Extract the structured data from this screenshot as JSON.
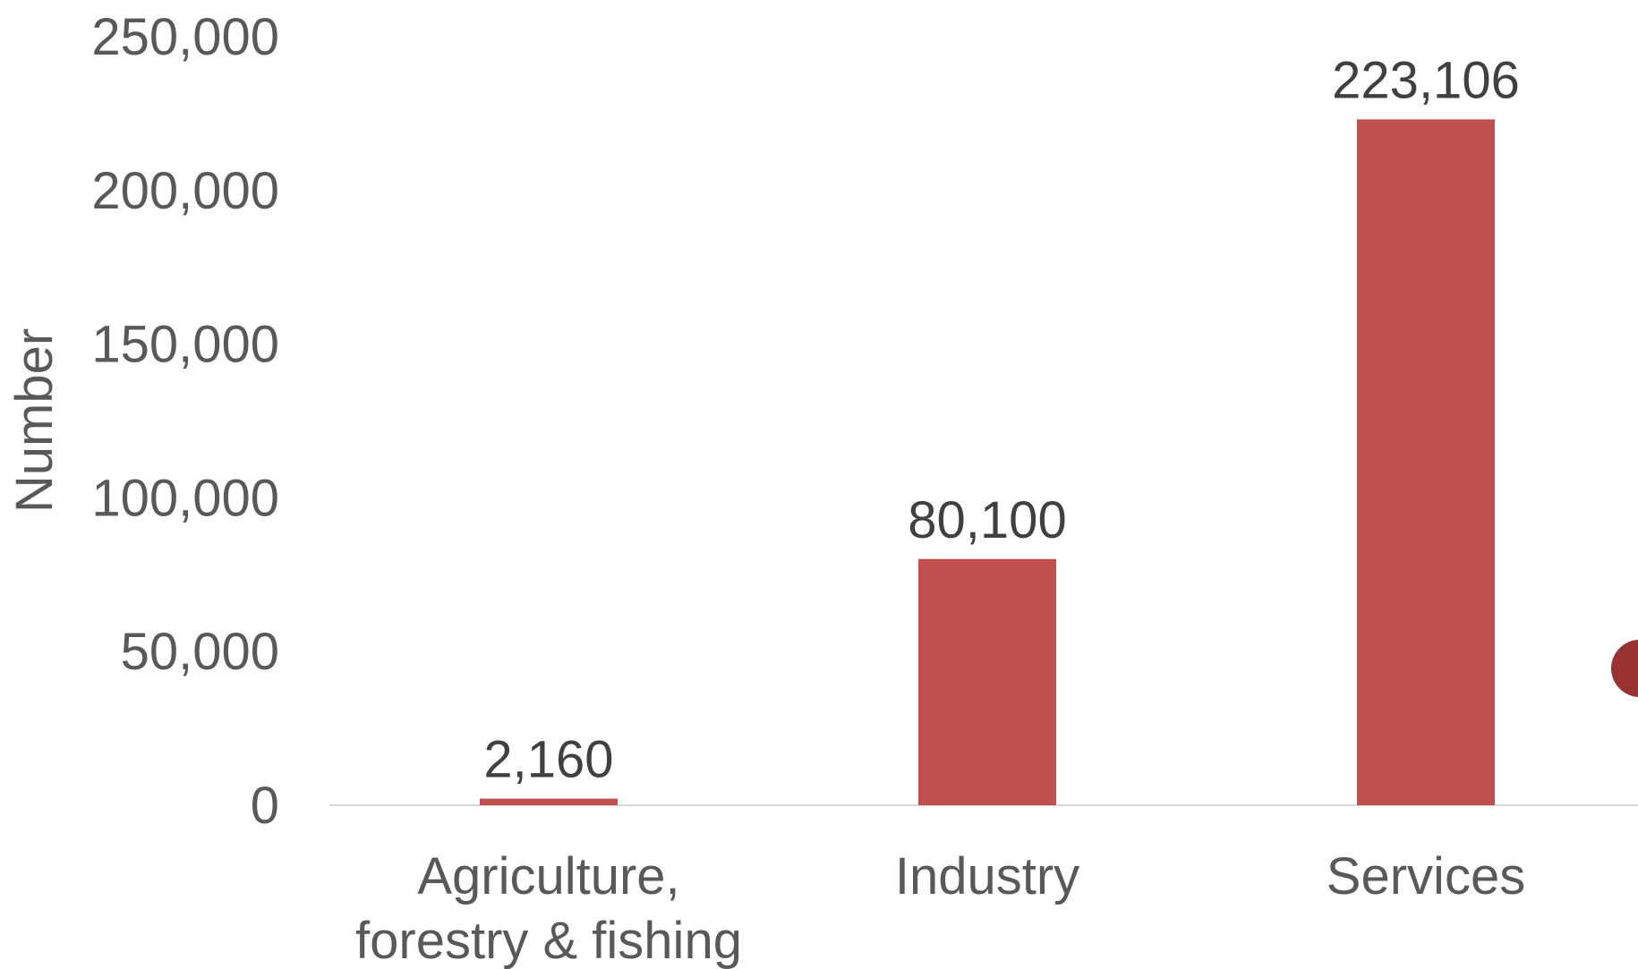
{
  "chart_data": {
    "type": "bar",
    "title": "",
    "xlabel": "",
    "ylabel": "Number",
    "ylim": [
      0,
      250000
    ],
    "yticks": [
      0,
      50000,
      100000,
      150000,
      200000,
      250000
    ],
    "ytick_labels": [
      "0",
      "50,000",
      "100,000",
      "150,000",
      "200,000",
      "250,000"
    ],
    "categories": [
      [
        "Agriculture,",
        "forestry & fishing"
      ],
      [
        "Industry"
      ],
      [
        "Services"
      ]
    ],
    "values": [
      2160,
      80100,
      223106
    ],
    "value_labels": [
      "2,160",
      "80,100",
      "223,106"
    ],
    "grid": false,
    "legend": "none",
    "colors": {
      "bar": "#c0504d",
      "axis_line": "#d9d9d9",
      "marker": "#993333"
    }
  }
}
